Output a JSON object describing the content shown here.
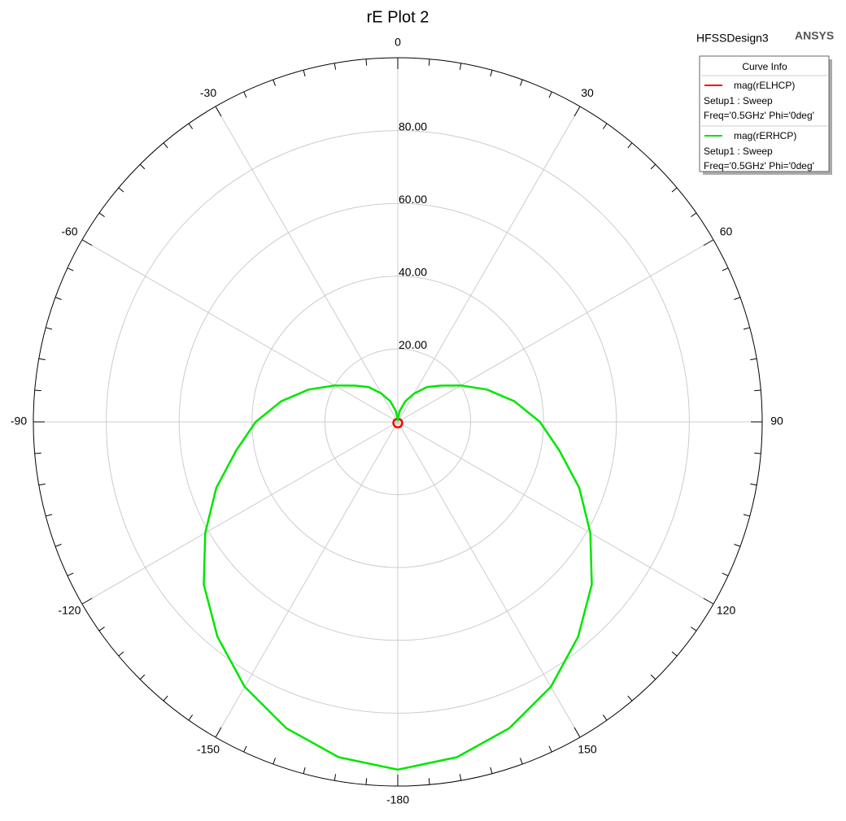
{
  "chart_data": {
    "type": "polar",
    "title": "rE Plot 2",
    "design": "HFSSDesign3",
    "brand": "ANSYS",
    "legend_title": "Curve Info",
    "theta": [
      -180,
      -170,
      -160,
      -150,
      -140,
      -130,
      -120,
      -110,
      -100,
      -90,
      -80,
      -70,
      -60,
      -50,
      -40,
      -30,
      -20,
      -10,
      0,
      10,
      20,
      30,
      40,
      50,
      60,
      70,
      80,
      90,
      100,
      110,
      120,
      130,
      140,
      150,
      160,
      170,
      180
    ],
    "series": [
      {
        "name": "mag(rELHCP)",
        "color": "#ff0000",
        "details": [
          "Setup1 : Sweep",
          "Freq='0.5GHz' Phi='0deg'"
        ],
        "values": [
          1.5,
          1.5,
          1.5,
          1.5,
          1.4,
          1.4,
          1.3,
          1.3,
          1.2,
          1.2,
          1.1,
          1.1,
          1.0,
          1.0,
          0.9,
          0.9,
          0.8,
          0.8,
          0.8,
          0.8,
          0.8,
          0.9,
          0.9,
          1.0,
          1.0,
          1.1,
          1.1,
          1.2,
          1.2,
          1.3,
          1.3,
          1.4,
          1.4,
          1.5,
          1.5,
          1.5,
          1.5
        ]
      },
      {
        "name": "mag(rERHCP)",
        "color": "#00e600",
        "details": [
          "Setup1 : Sweep",
          "Freq='0.5GHz' Phi='0deg'"
        ],
        "values": [
          95.5,
          93.5,
          89.5,
          84,
          77,
          69.5,
          61,
          53,
          45,
          39,
          32.5,
          26,
          20,
          15.5,
          12.5,
          9,
          6,
          3,
          0.5,
          3,
          6,
          9,
          12.5,
          15.5,
          20,
          26,
          32.5,
          39,
          45,
          53,
          61,
          69.5,
          77,
          84,
          89.5,
          93.5,
          95.5
        ]
      }
    ],
    "rlim": [
      0,
      100
    ],
    "rticks": [
      {
        "value": 20,
        "label": "20.00"
      },
      {
        "value": 40,
        "label": "40.00"
      },
      {
        "value": 60,
        "label": "60.00"
      },
      {
        "value": 80,
        "label": "80.00"
      }
    ],
    "thetaticks": [
      0,
      30,
      60,
      90,
      120,
      150,
      -180,
      -150,
      -120,
      -90,
      -60,
      -30
    ],
    "minor_tick_step": 5,
    "grid": true
  }
}
